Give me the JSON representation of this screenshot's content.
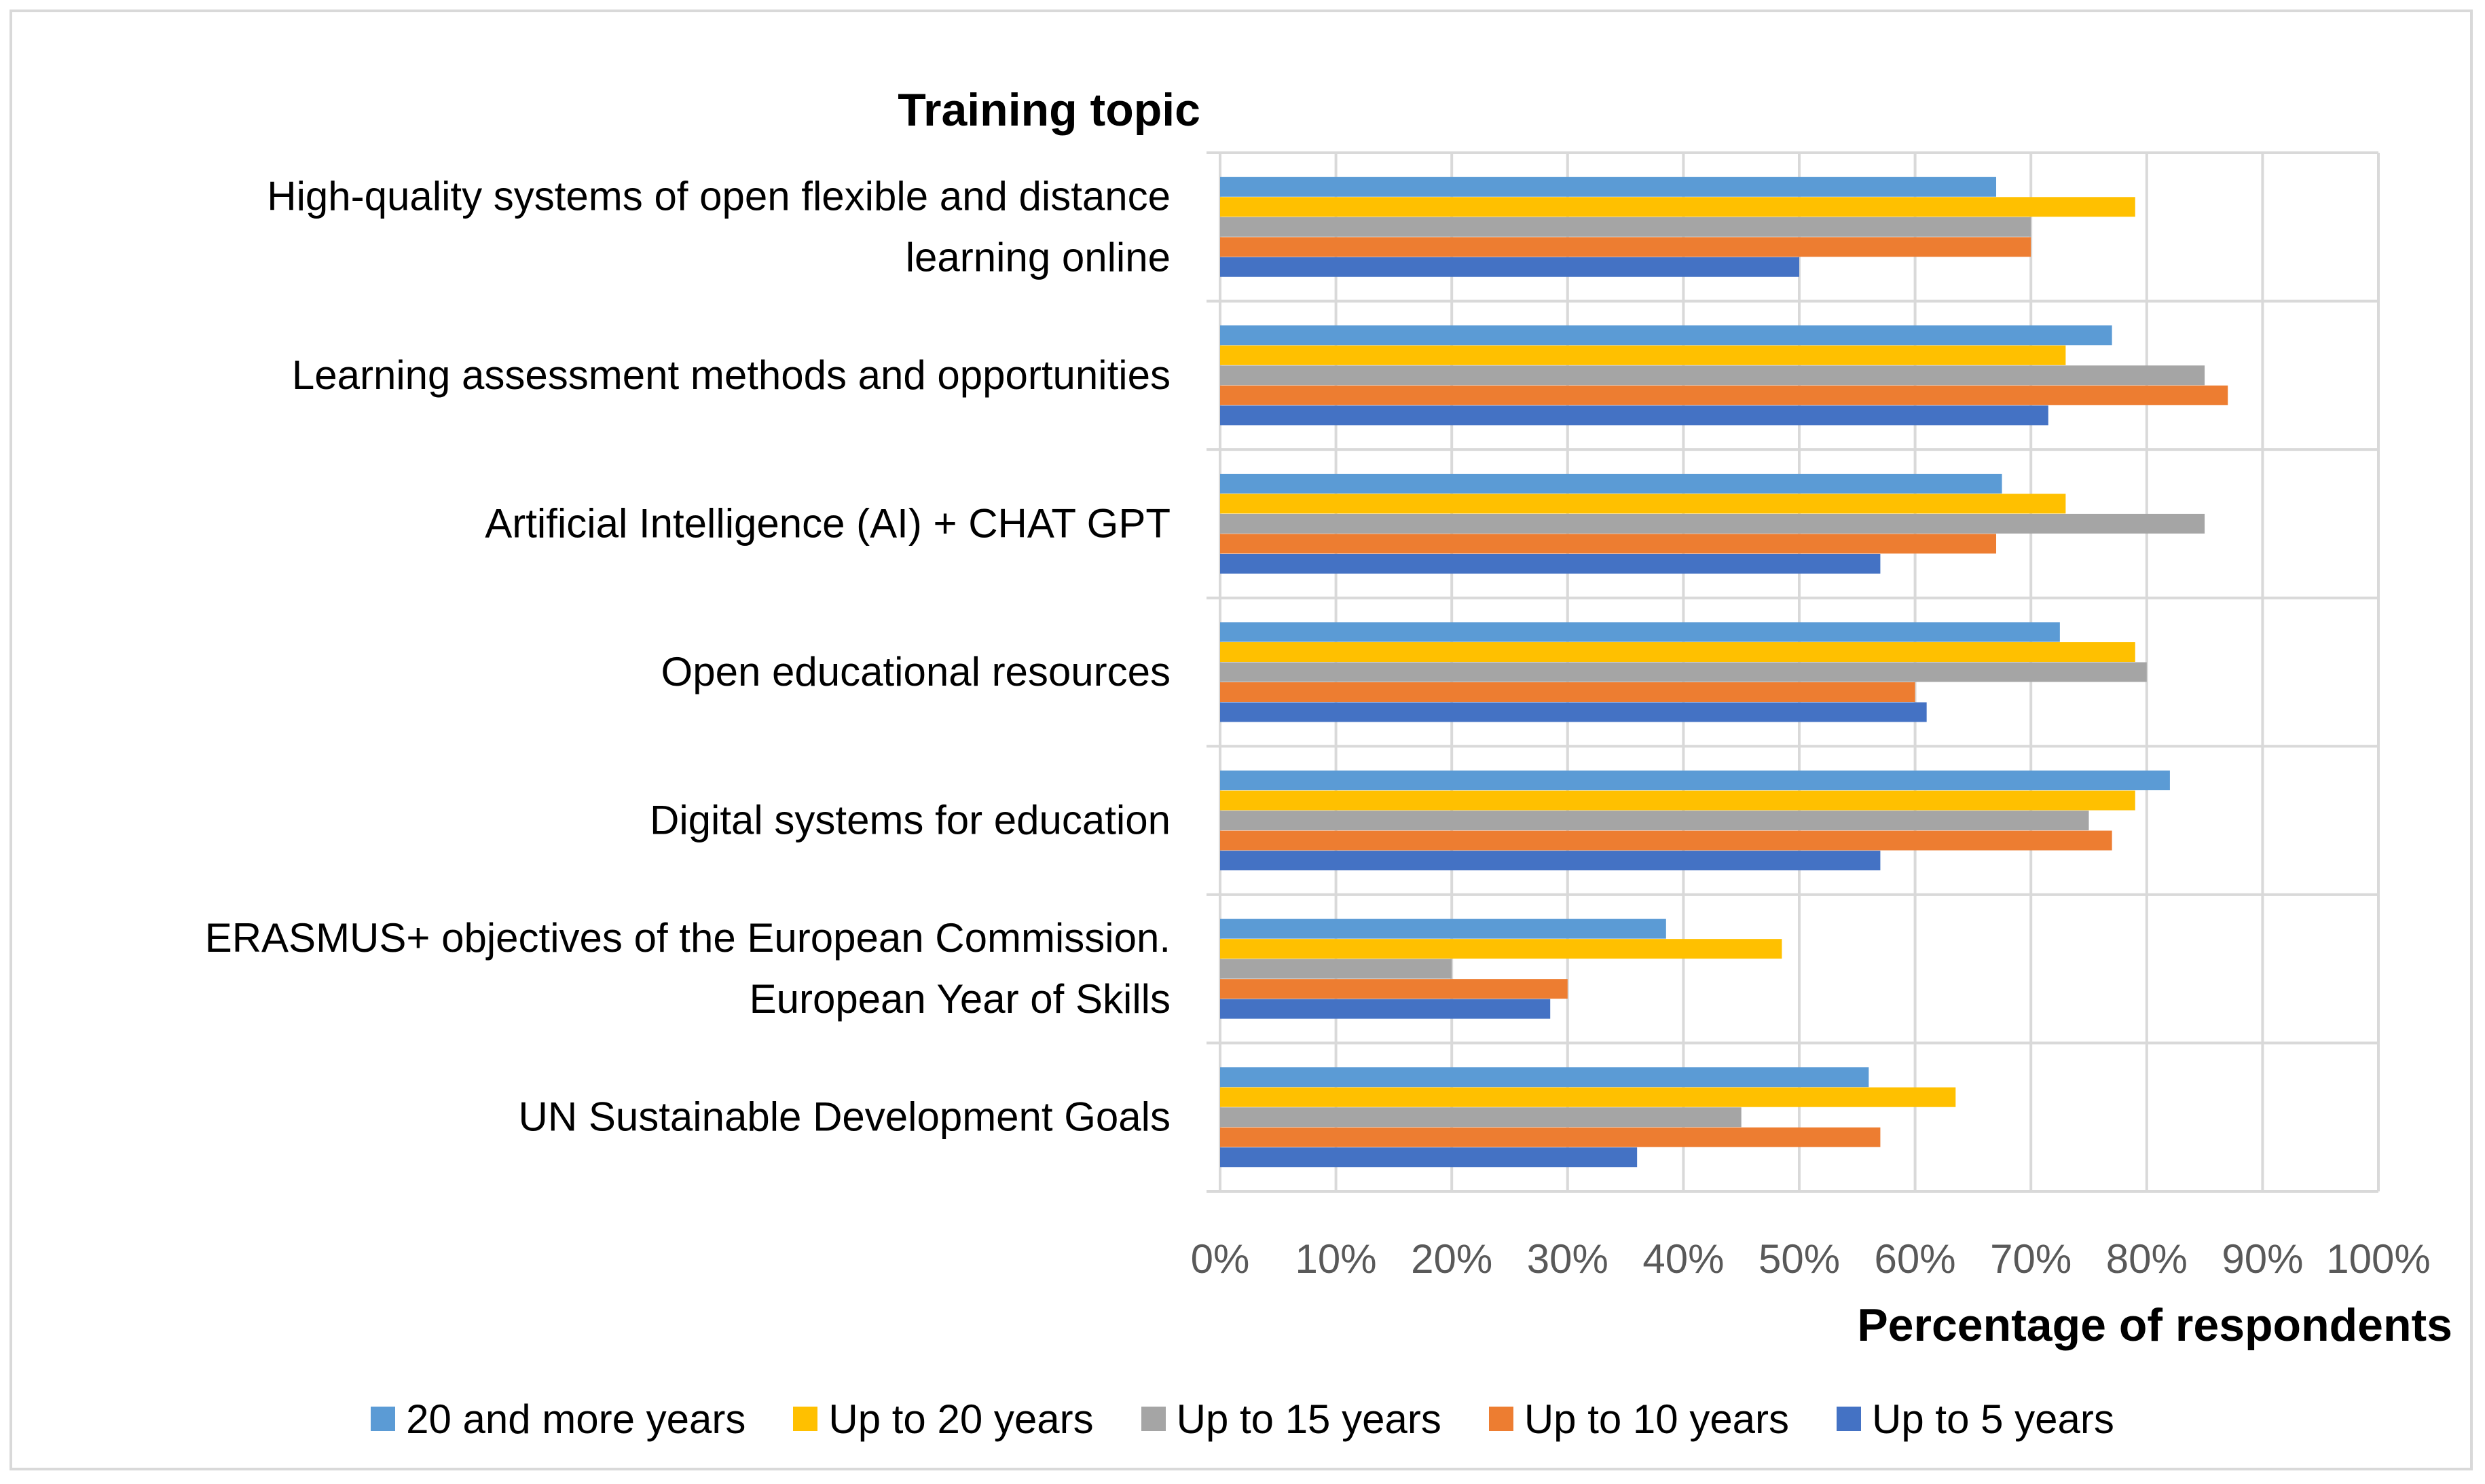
{
  "chart_data": {
    "type": "bar",
    "orientation": "horizontal",
    "ylabel": "Training topic",
    "xlabel": "Percentage of respondents",
    "xlim": [
      0,
      100
    ],
    "x_ticks": [
      "0%",
      "10%",
      "20%",
      "30%",
      "40%",
      "50%",
      "60%",
      "70%",
      "80%",
      "90%",
      "100%"
    ],
    "grid": true,
    "legend_position": "bottom",
    "categories": [
      "High-quality systems of open flexible and distance learning online",
      "Learning assessment methods and opportunities",
      "Artificial Intelligence (AI) + CHAT GPT",
      "Open educational resources",
      "Digital systems for education",
      "ERASMUS+ objectives of the European Commission. European Year of Skills",
      "UN Sustainable Development Goals"
    ],
    "category_lines": [
      [
        "High-quality systems of open flexible and distance",
        "learning online"
      ],
      [
        "Learning assessment methods and opportunities"
      ],
      [
        "Artificial Intelligence (AI) + CHAT GPT"
      ],
      [
        "Open educational resources"
      ],
      [
        "Digital systems for education"
      ],
      [
        "ERASMUS+ objectives of the European Commission.",
        "European Year of Skills"
      ],
      [
        "UN Sustainable Development Goals"
      ]
    ],
    "series": [
      {
        "name": "20 and more years",
        "color": "#5b9bd5",
        "values": [
          67,
          77,
          67.5,
          72.5,
          82,
          38.5,
          56
        ]
      },
      {
        "name": "Up to 20 years",
        "color": "#ffc000",
        "values": [
          79,
          73,
          73,
          79,
          79,
          48.5,
          63.5
        ]
      },
      {
        "name": "Up to 15 years",
        "color": "#a5a5a5",
        "values": [
          70,
          85,
          85,
          80,
          75,
          20,
          45
        ]
      },
      {
        "name": "Up to 10 years",
        "color": "#ed7d31",
        "values": [
          70,
          87,
          67,
          60,
          77,
          30,
          57
        ]
      },
      {
        "name": "Up to 5 years",
        "color": "#4472c4",
        "values": [
          50,
          71.5,
          57,
          61,
          57,
          28.5,
          36
        ]
      }
    ]
  }
}
